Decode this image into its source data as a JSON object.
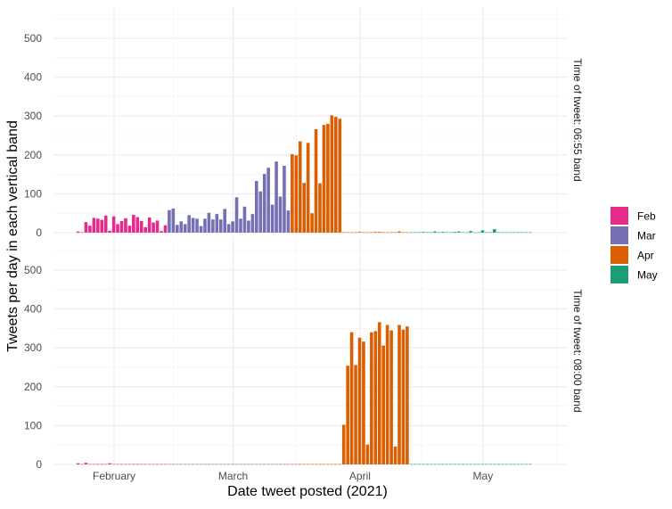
{
  "chart_data": {
    "type": "bar",
    "xlabel": "Date tweet posted (2021)",
    "ylabel": "Tweets per day in each vertical band",
    "x_ticks": [
      "February",
      "March",
      "April",
      "May"
    ],
    "y_ticks": [
      "0",
      "100",
      "200",
      "300",
      "400",
      "500"
    ],
    "ylim": [
      0,
      560
    ],
    "legend": {
      "position": "right",
      "items": [
        {
          "label": "Feb",
          "color": "#e7298a"
        },
        {
          "label": "Mar",
          "color": "#7570b3"
        },
        {
          "label": "Apr",
          "color": "#d95f02"
        },
        {
          "label": "May",
          "color": "#1b9e77"
        }
      ]
    },
    "day_offset_note": "day index 0 = 2021-01-27",
    "panels": [
      {
        "strip": "Time of tweet: 06:55 band",
        "series": [
          {
            "name": "Feb",
            "start_day": 5,
            "values": [
              3,
              1,
              27,
              18,
              38,
              36,
              33,
              44,
              5,
              42,
              22,
              30,
              37,
              18,
              46,
              40,
              30,
              14,
              39,
              26,
              31,
              4,
              19
            ]
          },
          {
            "name": "Mar",
            "start_day": 28,
            "values": [
              58,
              62,
              20,
              29,
              22,
              45,
              38,
              36,
              17,
              36,
              51,
              34,
              48,
              34,
              61,
              22,
              29,
              91,
              36,
              67,
              31,
              48,
              133,
              106,
              151,
              167,
              72,
              183,
              93,
              172,
              57
            ]
          },
          {
            "name": "Apr",
            "start_day": 59,
            "values": [
              202,
              199,
              235,
              128,
              231,
              50,
              266,
              127,
              277,
              280,
              302,
              298,
              293,
              1,
              1,
              1,
              1,
              2,
              1,
              1,
              1,
              2,
              2,
              1,
              1,
              1,
              1,
              3,
              1,
              1
            ]
          },
          {
            "name": "May",
            "start_day": 89,
            "values": [
              1,
              1,
              1,
              2,
              1,
              1,
              3,
              1,
              2,
              1,
              1,
              2,
              3,
              1,
              1,
              4,
              1,
              1,
              6,
              1,
              1,
              9,
              1,
              1,
              1,
              1,
              1,
              1,
              1,
              1,
              1
            ]
          }
        ]
      },
      {
        "strip": "Time of tweet: 08:00 band",
        "series": [
          {
            "name": "Feb",
            "start_day": 5,
            "values": [
              3,
              1,
              4,
              1,
              1,
              1,
              1,
              1,
              3,
              1,
              1,
              1,
              1,
              1,
              1,
              1,
              1,
              1,
              1,
              1,
              1,
              1,
              1
            ]
          },
          {
            "name": "Mar",
            "start_day": 28,
            "values": [
              1,
              1,
              1,
              1,
              1,
              1,
              1,
              1,
              1,
              1,
              1,
              1,
              1,
              1,
              1,
              1,
              1,
              1,
              1,
              1,
              1,
              1,
              1,
              1,
              1,
              1,
              1,
              1,
              1,
              1,
              1
            ]
          },
          {
            "name": "Apr",
            "start_day": 59,
            "values": [
              1,
              1,
              1,
              1,
              1,
              1,
              1,
              1,
              1,
              1,
              1,
              1,
              1,
              102,
              254,
              340,
              256,
              326,
              316,
              51,
              340,
              343,
              366,
              306,
              359,
              345,
              46,
              359,
              347,
              355
            ]
          },
          {
            "name": "May",
            "start_day": 89,
            "values": [
              1,
              1,
              1,
              1,
              1,
              1,
              1,
              1,
              1,
              1,
              1,
              1,
              1,
              1,
              1,
              1,
              1,
              1,
              1,
              1,
              1,
              1,
              1,
              1,
              1,
              1,
              1,
              1,
              1,
              1,
              1
            ]
          }
        ]
      }
    ]
  }
}
